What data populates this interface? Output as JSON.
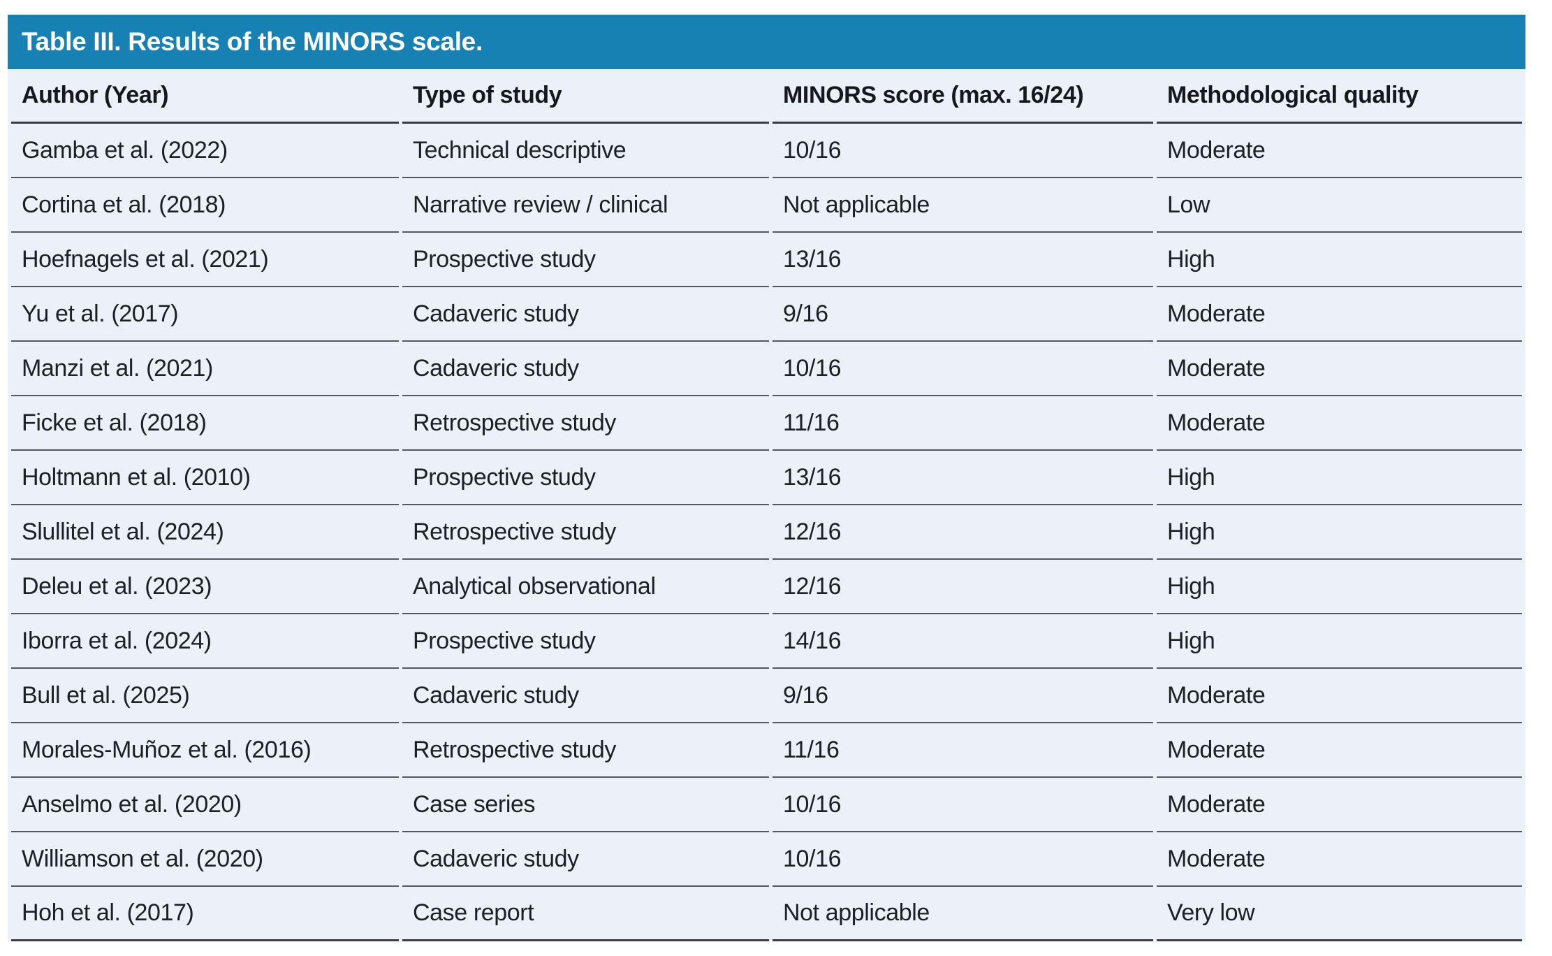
{
  "table": {
    "title": "Table III. Results of the MINORS scale.",
    "columns": [
      "Author (Year)",
      "Type of study",
      "MINORS score (max. 16/24)",
      "Methodological quality"
    ],
    "row_keys": [
      "author",
      "type_of_study",
      "minors_score",
      "quality"
    ],
    "rows": [
      {
        "author": "Gamba et al. (2022)",
        "type_of_study": "Technical descriptive",
        "minors_score": "10/16",
        "quality": "Moderate"
      },
      {
        "author": "Cortina et al. (2018)",
        "type_of_study": "Narrative review / clinical",
        "minors_score": "Not applicable",
        "quality": "Low"
      },
      {
        "author": "Hoefnagels et al. (2021)",
        "type_of_study": "Prospective study",
        "minors_score": "13/16",
        "quality": "High"
      },
      {
        "author": "Yu et al. (2017)",
        "type_of_study": "Cadaveric study",
        "minors_score": "9/16",
        "quality": "Moderate"
      },
      {
        "author": "Manzi et al. (2021)",
        "type_of_study": "Cadaveric study",
        "minors_score": "10/16",
        "quality": "Moderate"
      },
      {
        "author": "Ficke et al. (2018)",
        "type_of_study": "Retrospective study",
        "minors_score": "11/16",
        "quality": "Moderate"
      },
      {
        "author": "Holtmann et al. (2010)",
        "type_of_study": "Prospective study",
        "minors_score": "13/16",
        "quality": "High"
      },
      {
        "author": "Slullitel et al. (2024)",
        "type_of_study": "Retrospective study",
        "minors_score": "12/16",
        "quality": "High"
      },
      {
        "author": "Deleu et al. (2023)",
        "type_of_study": "Analytical observational",
        "minors_score": "12/16",
        "quality": "High"
      },
      {
        "author": "Iborra et al. (2024)",
        "type_of_study": "Prospective study",
        "minors_score": "14/16",
        "quality": "High"
      },
      {
        "author": "Bull et al. (2025)",
        "type_of_study": "Cadaveric study",
        "minors_score": "9/16",
        "quality": "Moderate"
      },
      {
        "author": "Morales-Muñoz et al. (2016)",
        "type_of_study": "Retrospective study",
        "minors_score": "11/16",
        "quality": "Moderate"
      },
      {
        "author": "Anselmo et al. (2020)",
        "type_of_study": "Case series",
        "minors_score": "10/16",
        "quality": "Moderate"
      },
      {
        "author": "Williamson et al. (2020)",
        "type_of_study": "Cadaveric study",
        "minors_score": "10/16",
        "quality": "Moderate"
      },
      {
        "author": "Hoh et al. (2017)",
        "type_of_study": "Case report",
        "minors_score": "Not applicable",
        "quality": "Very low"
      }
    ]
  },
  "colors": {
    "title_bar": "#1681b2",
    "row_background": "#ecf0f8",
    "divider": "#53585e",
    "heavy_border": "#383d42",
    "text": "#1c2025",
    "title_text": "#ffffff"
  }
}
